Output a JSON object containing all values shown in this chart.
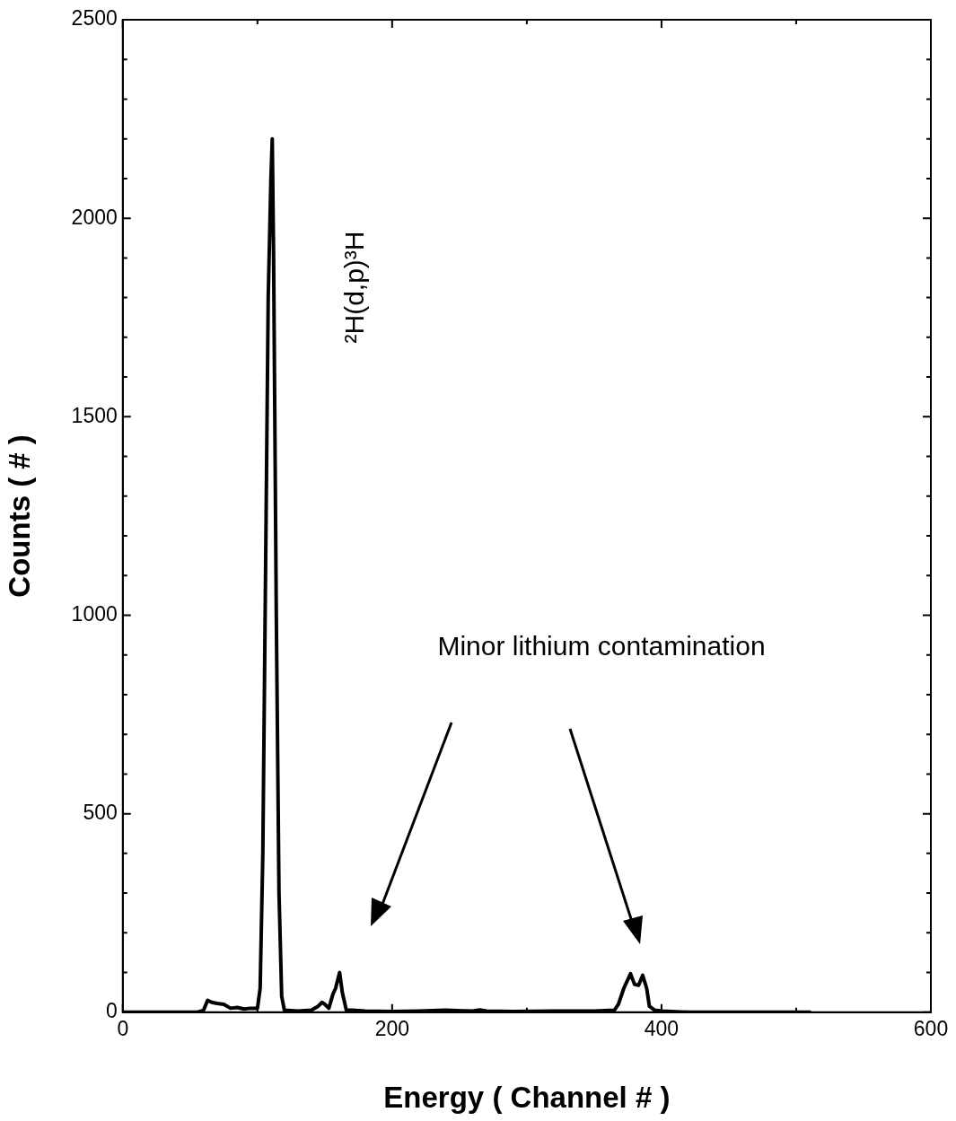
{
  "chart_data": {
    "type": "line",
    "xlabel": "Energy ( Channel # )",
    "ylabel": "Counts ( # )",
    "annotations": [
      "²H(d,p)³H",
      "Minor lithium contamination"
    ],
    "x": [
      0,
      20,
      40,
      55,
      60,
      63,
      66,
      70,
      75,
      80,
      85,
      90,
      95,
      100,
      102,
      104,
      106,
      108,
      110,
      111,
      112,
      114,
      116,
      118,
      120,
      130,
      140,
      145,
      148,
      150,
      153,
      156,
      158,
      161,
      163,
      166,
      170,
      180,
      200,
      220,
      240,
      260,
      265,
      270,
      290,
      320,
      350,
      365,
      368,
      372,
      377,
      380,
      383,
      386,
      389,
      391,
      395,
      400,
      420,
      450,
      480,
      511
    ],
    "series": [
      {
        "color": "#000000",
        "values": [
          0,
          0,
          0,
          0,
          5,
          30,
          25,
          22,
          20,
          10,
          12,
          8,
          10,
          10,
          60,
          400,
          1100,
          1800,
          2100,
          2200,
          1900,
          1000,
          300,
          40,
          5,
          3,
          5,
          15,
          25,
          20,
          10,
          45,
          60,
          100,
          50,
          5,
          5,
          3,
          2,
          3,
          5,
          3,
          6,
          3,
          2,
          3,
          3,
          5,
          20,
          60,
          97,
          70,
          68,
          93,
          60,
          15,
          5,
          3,
          0,
          0,
          0,
          0
        ]
      }
    ],
    "xlim": [
      0,
      600
    ],
    "ylim": [
      0,
      2500
    ],
    "xticks": [
      0,
      {
        "value": 100,
        "label": null
      },
      200,
      {
        "value": 300,
        "label": null
      },
      400,
      {
        "value": 500,
        "label": null
      },
      600
    ],
    "yticks": [
      0,
      {
        "value": 100,
        "label": null
      },
      {
        "value": 200,
        "label": null
      },
      {
        "value": 300,
        "label": null
      },
      {
        "value": 400,
        "label": null
      },
      500,
      {
        "value": 600,
        "label": null
      },
      {
        "value": 700,
        "label": null
      },
      {
        "value": 800,
        "label": null
      },
      {
        "value": 900,
        "label": null
      },
      1000,
      {
        "value": 1100,
        "label": null
      },
      {
        "value": 1200,
        "label": null
      },
      {
        "value": 1300,
        "label": null
      },
      {
        "value": 1400,
        "label": null
      },
      1500,
      {
        "value": 1600,
        "label": null
      },
      {
        "value": 1700,
        "label": null
      },
      {
        "value": 1800,
        "label": null
      },
      {
        "value": 1900,
        "label": null
      },
      2000,
      {
        "value": 2100,
        "label": null
      },
      {
        "value": 2200,
        "label": null
      },
      {
        "value": 2300,
        "label": null
      },
      {
        "value": 2400,
        "label": null
      },
      2500
    ],
    "marker": "none",
    "line_style": "solid",
    "legend": false,
    "grid": false
  }
}
